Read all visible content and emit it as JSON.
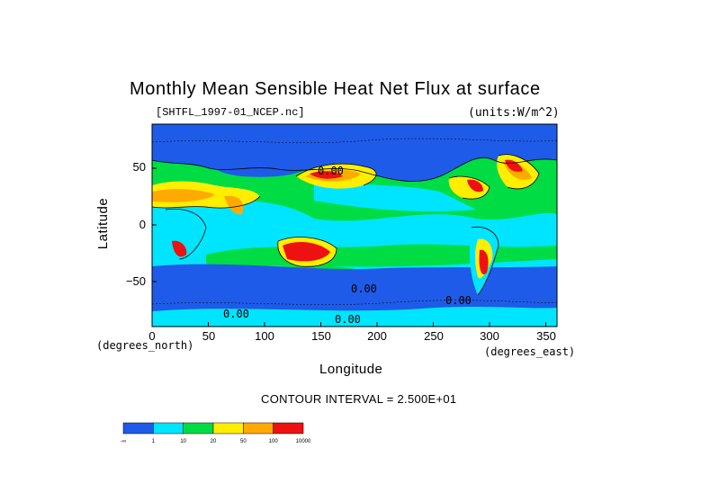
{
  "title": "Monthly Mean Sensible Heat Net Flux at surface",
  "source_file": "[SHTFL_1997-01_NCEP.nc]",
  "units": "(units:W/m^2)",
  "axes": {
    "x_label": "Longitude",
    "x_unit_label": "(degrees_east)",
    "x_ticks": [
      "0",
      "50",
      "100",
      "150",
      "200",
      "250",
      "300",
      "350"
    ],
    "y_label": "Latitude",
    "y_unit_label": "(degrees_north)",
    "y_ticks": [
      "50",
      "0",
      "−50"
    ]
  },
  "contour_interval": "CONTOUR INTERVAL = 2.500E+01",
  "contour_labels": [
    "0.00",
    "0.00",
    "0.00",
    "0.00",
    "0.00"
  ],
  "legend": {
    "colors": [
      "#1e5be8",
      "#00e5ff",
      "#00dd44",
      "#ffee00",
      "#ffaa00",
      "#ee1111"
    ],
    "labels": [
      "-∞",
      "1",
      "10",
      "20",
      "50",
      "100",
      "10000"
    ]
  },
  "palette": {
    "deep_blue": "#1e5be8",
    "cyan": "#00e5ff",
    "green": "#00dd44",
    "yellow": "#ffee00",
    "orange": "#ffaa00",
    "red": "#ee1111",
    "dark_red": "#a11818"
  }
}
